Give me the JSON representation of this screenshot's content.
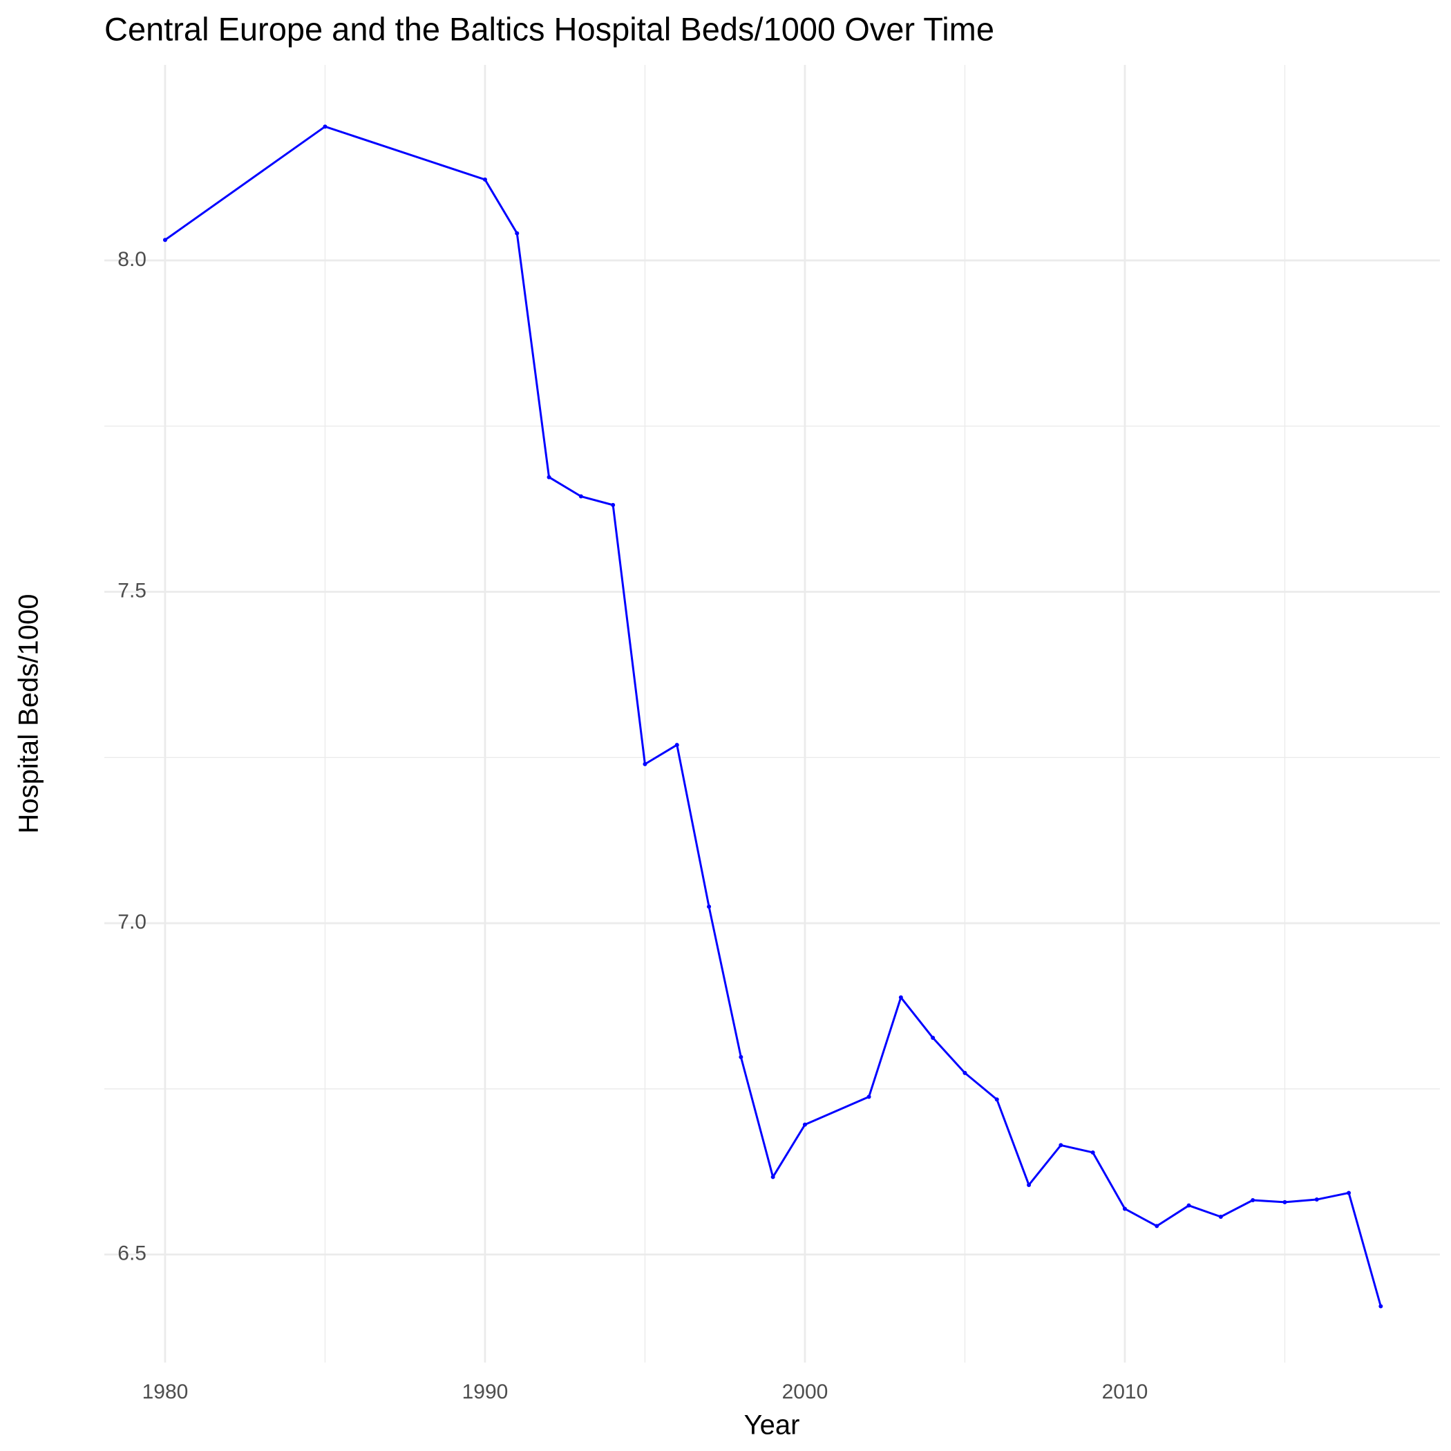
{
  "chart_data": {
    "type": "line",
    "title": "Central Europe and the Baltics Hospital Beds/1000 Over Time",
    "x_label": "Year",
    "y_label": "Hospital Beds/1000",
    "x": [
      1980,
      1985,
      1990,
      1991,
      1992,
      1993,
      1994,
      1995,
      1996,
      1997,
      1998,
      1999,
      2000,
      2002,
      2003,
      2004,
      2005,
      2006,
      2007,
      2008,
      2009,
      2010,
      2011,
      2012,
      2013,
      2014,
      2015,
      2016,
      2017,
      2018
    ],
    "series": [
      {
        "name": "Hospital Beds/1000",
        "color": "#0000ff",
        "values": [
          8.031,
          8.202,
          8.122,
          8.041,
          7.673,
          7.644,
          7.631,
          7.24,
          7.269,
          7.025,
          6.798,
          6.617,
          6.696,
          6.738,
          6.888,
          6.827,
          6.774,
          6.734,
          6.605,
          6.665,
          6.654,
          6.569,
          6.543,
          6.574,
          6.557,
          6.582,
          6.579,
          6.583,
          6.593,
          6.422
        ]
      }
    ],
    "xlim": [
      1978.1,
      2019.85
    ],
    "ylim": [
      6.337,
      8.295
    ],
    "xticks": [
      1980,
      1990,
      2000,
      2010
    ],
    "yticks": [
      {
        "value": 6.5,
        "label": "6.5"
      },
      {
        "value": 7,
        "label": "7.0"
      },
      {
        "value": 7.5,
        "label": "7.5"
      },
      {
        "value": 8,
        "label": "8.0"
      }
    ],
    "x_minor_ticks": [
      1985,
      1995,
      2005,
      2015
    ],
    "y_minor_ticks": [
      6.75,
      7.25,
      7.75
    ],
    "grid": true
  }
}
